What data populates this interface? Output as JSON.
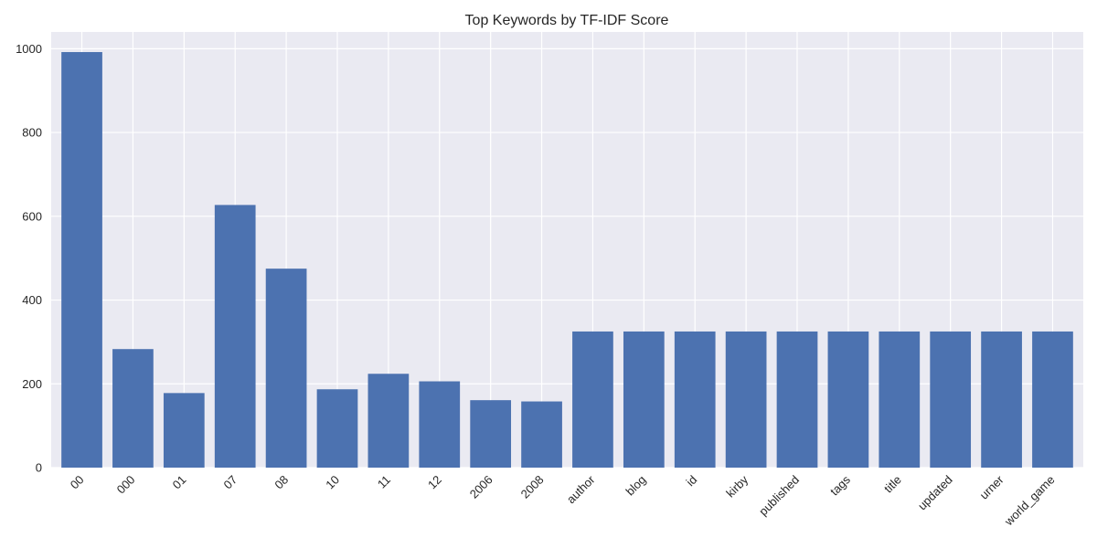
{
  "chart_data": {
    "type": "bar",
    "title": "Top Keywords by TF-IDF Score",
    "xlabel": "",
    "ylabel": "",
    "categories": [
      "00",
      "000",
      "01",
      "07",
      "08",
      "10",
      "11",
      "12",
      "2006",
      "2008",
      "author",
      "blog",
      "id",
      "kirby",
      "published",
      "tags",
      "title",
      "updated",
      "urner",
      "world_game"
    ],
    "values": [
      992,
      283,
      178,
      627,
      475,
      187,
      224,
      206,
      161,
      158,
      325,
      325,
      325,
      325,
      325,
      325,
      325,
      325,
      325,
      325
    ],
    "ylim": [
      0,
      1040
    ],
    "yticks": [
      0,
      200,
      400,
      600,
      800,
      1000
    ],
    "grid": true,
    "legend": "none",
    "colors": {
      "bar": "#4c72b0",
      "background": "#eaeaf2",
      "grid": "#ffffff",
      "text": "#262626"
    }
  }
}
